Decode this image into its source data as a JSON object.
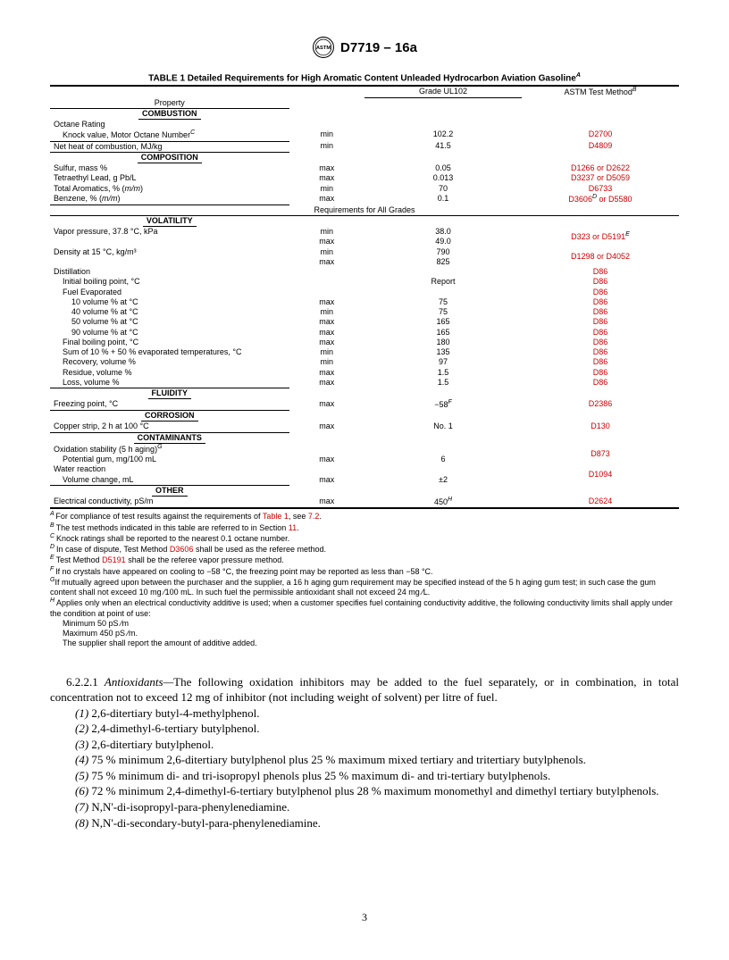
{
  "doc": {
    "designation": "D7719 – 16a",
    "pagenum": "3"
  },
  "table": {
    "title": "TABLE 1 Detailed Requirements for High Aromatic Content Unleaded Hydrocarbon Aviation Gasoline",
    "title_sup": "A",
    "col_grade": "Grade UL102",
    "col_method": "ASTM Test Method",
    "col_method_sup": "B",
    "col_property": "Property",
    "req_all": "Requirements for All Grades",
    "sections": {
      "combustion": "COMBUSTION",
      "composition": "COMPOSITION",
      "volatility": "VOLATILITY",
      "fluidity": "FLUIDITY",
      "corrosion": "CORROSION",
      "contaminants": "CONTAMINANTS",
      "other": "OTHER"
    },
    "rows": {
      "octane": {
        "prop": "Octane Rating"
      },
      "knock": {
        "prop": "Knock value, Motor Octane Number",
        "sup": "C",
        "lim": "min",
        "val": "102.2",
        "meth": "D2700"
      },
      "nethc": {
        "prop": "Net heat of combustion, MJ/kg",
        "lim": "min",
        "val": "41.5",
        "meth": "D4809"
      },
      "sulfur": {
        "prop": "Sulfur, mass %",
        "lim": "max",
        "val": "0.05",
        "meth": "D1266 or D2622"
      },
      "tel": {
        "prop": "Tetraethyl Lead, g Pb/L",
        "lim": "max",
        "val": "0.013",
        "meth": "D3237 or D5059"
      },
      "aromatics": {
        "prop": "Total Aromatics,  % (m/m)",
        "lim": "min",
        "val": "70",
        "meth": "D6733"
      },
      "benzene": {
        "prop": "Benzene,  % (m/m)",
        "lim": "max",
        "val": "0.1",
        "meth_a": "D3606",
        "meth_sup": "D",
        "meth_b": " or D5580"
      },
      "vp": {
        "prop": "Vapor pressure, 37.8 °C, kPa",
        "lim1": "min",
        "val1": "38.0",
        "lim2": "max",
        "val2": "49.0",
        "meth": "D323 or D5191",
        "meth_sup": "E"
      },
      "density": {
        "prop": "Density at 15 °C, kg/m³",
        "lim1": "min",
        "val1": "790",
        "lim2": "max",
        "val2": "825",
        "meth": "D1298 or D4052"
      },
      "dist": {
        "prop": "Distillation",
        "meth": "D86"
      },
      "ibp": {
        "prop": "Initial boiling point, °C",
        "val": "Report",
        "meth": "D86"
      },
      "fe": {
        "prop": "Fuel Evaporated",
        "meth": "D86"
      },
      "v10": {
        "prop": "10 volume % at °C",
        "lim": "max",
        "val": "75",
        "meth": "D86"
      },
      "v40": {
        "prop": "40 volume % at °C",
        "lim": "min",
        "val": "75",
        "meth": "D86"
      },
      "v50": {
        "prop": "50 volume % at °C",
        "lim": "max",
        "val": "165",
        "meth": "D86"
      },
      "v90": {
        "prop": "90 volume % at °C",
        "lim": "max",
        "val": "165",
        "meth": "D86"
      },
      "fbp": {
        "prop": "Final boiling point, °C",
        "lim": "max",
        "val": "180",
        "meth": "D86"
      },
      "sum": {
        "prop": "Sum of 10 % + 50 % evaporated temperatures, °C",
        "lim": "min",
        "val": "135",
        "meth": "D86"
      },
      "rec": {
        "prop": "Recovery, volume %",
        "lim": "min",
        "val": "97",
        "meth": "D86"
      },
      "res": {
        "prop": "Residue, volume %",
        "lim": "max",
        "val": "1.5",
        "meth": "D86"
      },
      "loss": {
        "prop": "Loss, volume %",
        "lim": "max",
        "val": "1.5",
        "meth": "D86"
      },
      "freeze": {
        "prop": "Freezing point, °C",
        "lim": "max",
        "val": "−58",
        "val_sup": "F",
        "meth": "D2386"
      },
      "copper": {
        "prop": "Copper strip, 2 h at 100 °C",
        "lim": "max",
        "val": "No. 1",
        "meth": "D130"
      },
      "oxid": {
        "prop": "Oxidation stability (5 h aging)",
        "sup": "G",
        "meth": "D873"
      },
      "gum": {
        "prop": "Potential gum, mg/100 mL",
        "lim": "max",
        "val": "6"
      },
      "water": {
        "prop": "Water reaction",
        "meth": "D1094"
      },
      "volch": {
        "prop": "Volume change, mL",
        "lim": "max",
        "val": "±2"
      },
      "elec": {
        "prop": "Electrical conductivity, pS/m",
        "lim": "max",
        "val": "450",
        "val_sup": "H",
        "meth": "D2624"
      }
    }
  },
  "footnotes": {
    "A": {
      "pre": "For compliance of test results against the requirements of ",
      "link1": "Table 1",
      "mid": ", see ",
      "link2": "7.2",
      "post": "."
    },
    "B": {
      "pre": "The test methods indicated in this table are referred to in Section ",
      "link": "11",
      "post": "."
    },
    "C": "Knock ratings shall be reported to the nearest 0.1 octane number.",
    "D": {
      "pre": "In case of dispute, Test Method ",
      "link": "D3606",
      "post": " shall be used as the referee method."
    },
    "E": {
      "pre": "Test Method ",
      "link": "D5191",
      "post": " shall be the referee vapor pressure method."
    },
    "F": "If no crystals have appeared on cooling to −58 °C, the freezing point may be reported as less than −58 °C.",
    "G": "If mutually agreed upon between the purchaser and the supplier, a 16 h aging gum requirement may be specified instead of the 5 h aging gum test; in such case the gum content shall not exceed 10 mg ⁄100 mL. In such fuel the permissible antioxidant shall not exceed 24 mg ⁄L.",
    "H": "Applies only when an electrical conductivity additive is used; when a customer specifies fuel containing conductivity additive, the following conductivity limits shall apply under the condition at point of use:",
    "H1": "Minimum 50 pS ⁄m",
    "H2": "Maximum 450 pS ⁄m.",
    "H3": "The supplier shall report the amount of additive added."
  },
  "body": {
    "p1a": "6.2.2.1 ",
    "p1b": "Antioxidants—",
    "p1c": "The following oxidation inhibitors may be added to the fuel separately, or in combination, in total concentration not to exceed 12 mg of inhibitor (not including weight of solvent) per litre of fuel.",
    "i1": "(1) 2,6-ditertiary butyl-4-methylphenol.",
    "i2": "(2) 2,4-dimethyl-6-tertiary butylphenol.",
    "i3": "(3) 2,6-ditertiary butylphenol.",
    "i4": "(4) 75 % minimum 2,6-ditertiary butylphenol plus 25 % maximum mixed tertiary and tritertiary butylphenols.",
    "i5": "(5) 75 % minimum di- and tri-isopropyl phenols plus 25 % maximum di- and tri-tertiary butylphenols.",
    "i6": "(6) 72 % minimum 2,4-dimethyl-6-tertiary butylphenol plus 28 % maximum monomethyl and dimethyl tertiary butylphenols.",
    "i7": "(7) N,N'-di-isopropyl-para-phenylenediamine.",
    "i8": "(8) N,N'-di-secondary-butyl-para-phenylenediamine."
  }
}
